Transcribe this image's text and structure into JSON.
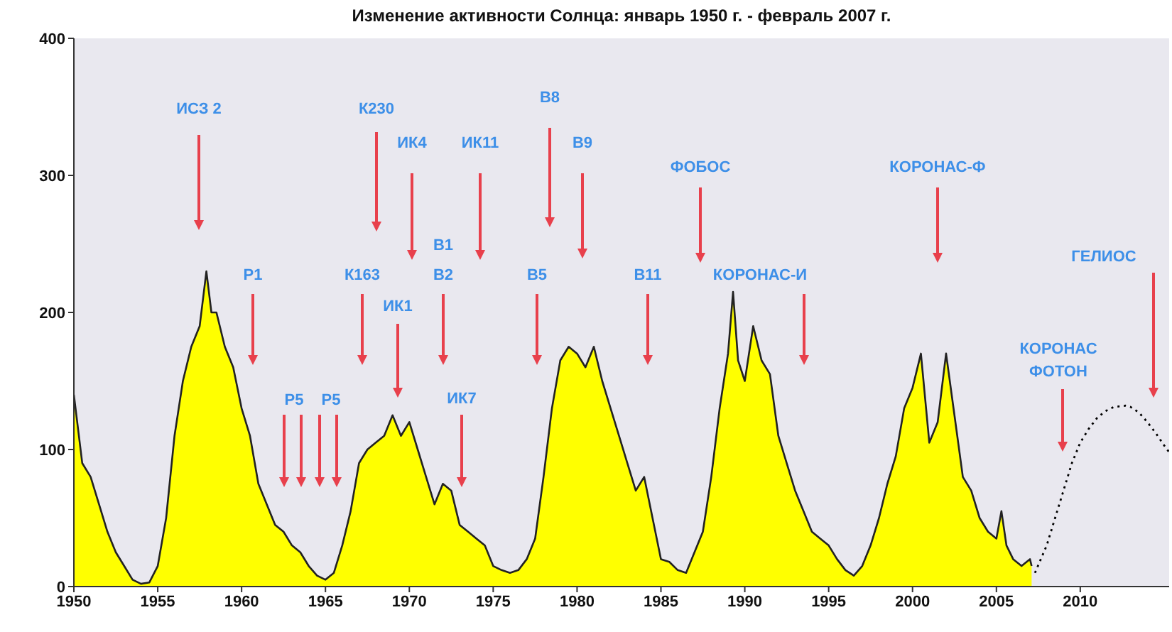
{
  "chart_data": {
    "type": "area",
    "title": "Изменение активности Солнца: январь 1950 г. - февраль 2007 г.",
    "xlim": [
      1950,
      2015.3
    ],
    "xticks": [
      1950,
      1955,
      1960,
      1965,
      1970,
      1975,
      1980,
      1985,
      1990,
      1995,
      2000,
      2005,
      2010
    ],
    "ylim": [
      0,
      400
    ],
    "yticks": [
      0,
      100,
      200,
      300,
      400
    ],
    "grid": false,
    "series": [
      {
        "color": "#ffff00",
        "x": [
          1950,
          1950.5,
          1951,
          1951.5,
          1952,
          1952.5,
          1953,
          1953.5,
          1954,
          1954.5,
          1955,
          1955.5,
          1956,
          1956.5,
          1957,
          1957.5,
          1957.9,
          1958.2,
          1958.5,
          1959,
          1959.5,
          1960,
          1960.5,
          1961,
          1961.5,
          1962,
          1962.5,
          1963,
          1963.5,
          1964,
          1964.5,
          1965,
          1965.5,
          1966,
          1966.5,
          1967,
          1967.5,
          1968,
          1968.5,
          1969,
          1969.5,
          1970,
          1970.5,
          1971,
          1971.5,
          1972,
          1972.5,
          1973,
          1973.5,
          1974,
          1974.5,
          1975,
          1975.5,
          1976,
          1976.5,
          1977,
          1977.5,
          1978,
          1978.5,
          1979,
          1979.5,
          1980,
          1980.5,
          1981,
          1981.5,
          1982,
          1982.5,
          1983,
          1983.5,
          1984,
          1984.5,
          1985,
          1985.5,
          1986,
          1986.5,
          1987,
          1987.5,
          1988,
          1988.5,
          1989,
          1989.3,
          1989.6,
          1990,
          1990.5,
          1991,
          1991.5,
          1992,
          1992.5,
          1993,
          1993.5,
          1994,
          1994.5,
          1995,
          1995.5,
          1996,
          1996.5,
          1997,
          1997.5,
          1998,
          1998.5,
          1999,
          1999.5,
          2000,
          2000.5,
          2001,
          2001.5,
          2002,
          2002.5,
          2003,
          2003.5,
          2004,
          2004.5,
          2005,
          2005.3,
          2005.6,
          2006,
          2006.5,
          2007,
          2007.1
        ],
        "values": [
          140,
          90,
          80,
          60,
          40,
          25,
          15,
          5,
          2,
          3,
          15,
          50,
          110,
          150,
          175,
          190,
          230,
          200,
          200,
          175,
          160,
          130,
          110,
          75,
          60,
          45,
          40,
          30,
          25,
          15,
          8,
          5,
          10,
          30,
          55,
          90,
          100,
          105,
          110,
          125,
          110,
          120,
          100,
          80,
          60,
          75,
          70,
          45,
          40,
          35,
          30,
          15,
          12,
          10,
          12,
          20,
          35,
          80,
          130,
          165,
          175,
          170,
          160,
          175,
          150,
          130,
          110,
          90,
          70,
          80,
          50,
          20,
          18,
          12,
          10,
          25,
          40,
          80,
          130,
          170,
          215,
          165,
          150,
          190,
          165,
          155,
          110,
          90,
          70,
          55,
          40,
          35,
          30,
          20,
          12,
          8,
          15,
          30,
          50,
          75,
          95,
          130,
          145,
          170,
          105,
          120,
          170,
          125,
          80,
          70,
          50,
          40,
          35,
          55,
          30,
          20,
          15,
          20,
          15
        ]
      },
      {
        "type": "line",
        "color": "#000000",
        "line_style": "dotted",
        "x": [
          2007.3,
          2008,
          2008.5,
          2009,
          2009.5,
          2010,
          2010.5,
          2011,
          2011.5,
          2012,
          2012.7,
          2013,
          2013.5,
          2014,
          2014.5,
          2015,
          2015.3
        ],
        "values": [
          10,
          30,
          50,
          70,
          90,
          105,
          115,
          123,
          128,
          131,
          132,
          131,
          127,
          120,
          112,
          103,
          98
        ]
      }
    ],
    "annotations": [
      "ИСЗ 2",
      "К230",
      "ИК4",
      "ИК11",
      "В8",
      "В9",
      "ФОБОС",
      "КОРОНАС-Ф",
      "Р1",
      "К163",
      "В1",
      "В2",
      "В5",
      "В11",
      "КОРОНАС-И",
      "ИК1",
      "Р5",
      "Р5",
      "ИК7",
      "КОРОНАС ФОТОН",
      "ГЕЛИОС"
    ]
  }
}
